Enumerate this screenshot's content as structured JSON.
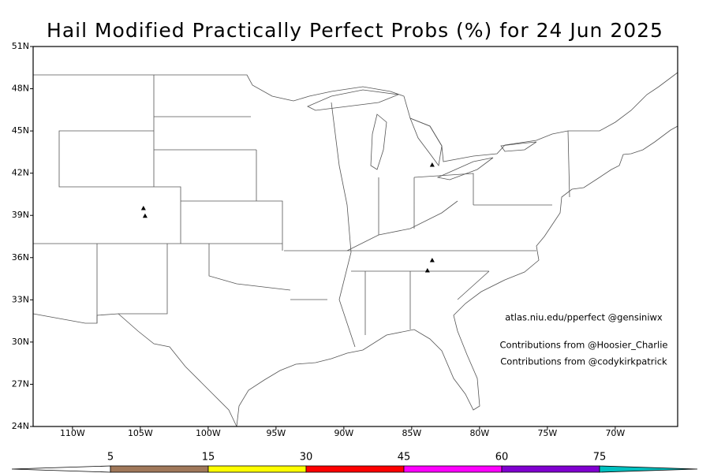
{
  "title": "Hail Modified Practically Perfect Probs (%) for 24 Jun 2025",
  "credits": [
    "atlas.niu.edu/pperfect @gensiniwx",
    "Contributions from @Hoosier_Charlie",
    "Contributions from @codykirkpatrick"
  ],
  "map": {
    "xlim": [
      -112.9,
      -65.4
    ],
    "ylim": [
      24,
      51
    ],
    "xticks": [
      {
        "value": -110,
        "label": "110W"
      },
      {
        "value": -105,
        "label": "105W"
      },
      {
        "value": -100,
        "label": "100W"
      },
      {
        "value": -95,
        "label": "95W"
      },
      {
        "value": -90,
        "label": "90W"
      },
      {
        "value": -85,
        "label": "85W"
      },
      {
        "value": -80,
        "label": "80W"
      },
      {
        "value": -75,
        "label": "75W"
      },
      {
        "value": -70,
        "label": "70W"
      }
    ],
    "yticks": [
      {
        "value": 24,
        "label": "24N"
      },
      {
        "value": 27,
        "label": "27N"
      },
      {
        "value": 30,
        "label": "30N"
      },
      {
        "value": 33,
        "label": "33N"
      },
      {
        "value": 36,
        "label": "36N"
      },
      {
        "value": 39,
        "label": "39N"
      },
      {
        "value": 42,
        "label": "42N"
      },
      {
        "value": 45,
        "label": "45N"
      },
      {
        "value": 48,
        "label": "48N"
      },
      {
        "value": 51,
        "label": "51N"
      }
    ],
    "reports": {
      "lon": [
        -104.77,
        -104.65,
        -83.49,
        -83.49,
        -83.84
      ],
      "lat": [
        39.52,
        38.97,
        42.6,
        35.82,
        35.09
      ],
      "color": "#000000"
    }
  },
  "colorbar": {
    "levels": [
      5,
      15,
      30,
      45,
      60,
      75
    ],
    "colors": [
      "#ffffff",
      "#a0785a",
      "#ffff00",
      "#ff0000",
      "#ff00ff",
      "#8000d0",
      "#00c0c0"
    ]
  }
}
